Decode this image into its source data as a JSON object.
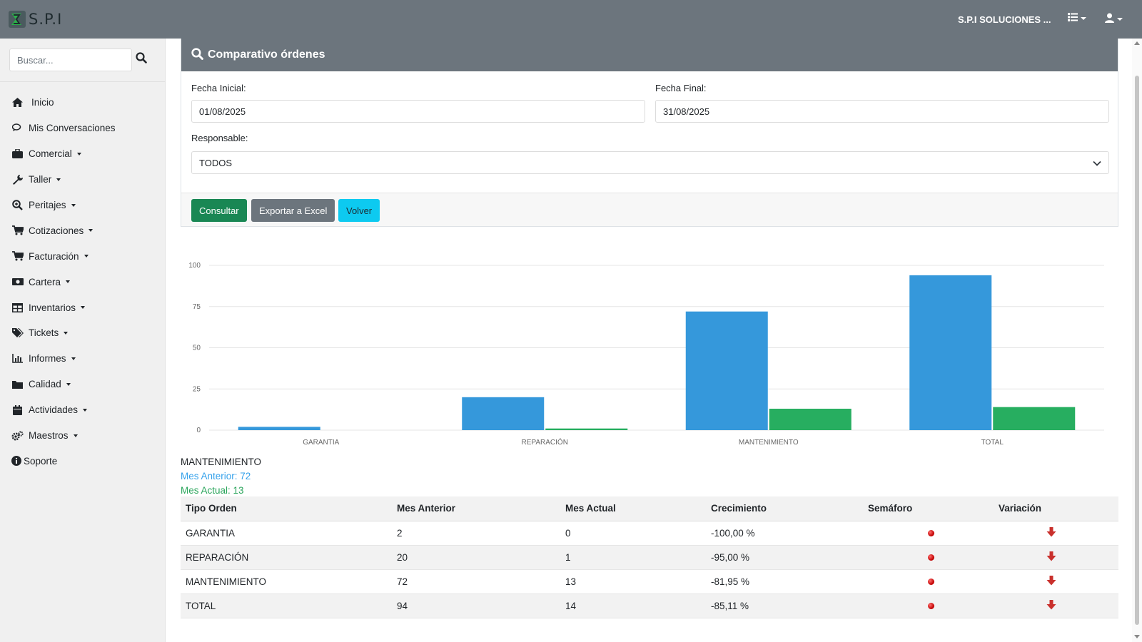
{
  "app": {
    "brand": "S.P.I",
    "company": "S.P.I SOLUCIONES ...",
    "icons": {
      "menu": "list-icon",
      "user": "user-icon"
    }
  },
  "sidebar": {
    "search_placeholder": "Buscar...",
    "items": [
      {
        "label": "Inicio",
        "icon": "home-icon",
        "dropdown": false
      },
      {
        "label": "Mis Conversaciones",
        "icon": "chat-icon",
        "dropdown": false
      },
      {
        "label": "Comercial",
        "icon": "briefcase-icon",
        "dropdown": true
      },
      {
        "label": "Taller",
        "icon": "wrench-icon",
        "dropdown": true
      },
      {
        "label": "Peritajes",
        "icon": "search-plus-icon",
        "dropdown": true
      },
      {
        "label": "Cotizaciones",
        "icon": "cart-icon",
        "dropdown": true
      },
      {
        "label": "Facturación",
        "icon": "cart-icon",
        "dropdown": true
      },
      {
        "label": "Cartera",
        "icon": "money-icon",
        "dropdown": true
      },
      {
        "label": "Inventarios",
        "icon": "table-icon",
        "dropdown": true
      },
      {
        "label": "Tickets",
        "icon": "tags-icon",
        "dropdown": true
      },
      {
        "label": "Informes",
        "icon": "chart-icon",
        "dropdown": true
      },
      {
        "label": "Calidad",
        "icon": "folder-icon",
        "dropdown": true
      },
      {
        "label": "Actividades",
        "icon": "calendar-icon",
        "dropdown": true
      },
      {
        "label": "Maestros",
        "icon": "cogs-icon",
        "dropdown": true
      },
      {
        "label": "Soporte",
        "icon": "info-icon",
        "dropdown": false
      }
    ]
  },
  "panel": {
    "title": "Comparativo órdenes",
    "fecha_inicial_label": "Fecha Inicial:",
    "fecha_inicial_value": "01/08/2025",
    "fecha_final_label": "Fecha Final:",
    "fecha_final_value": "31/08/2025",
    "responsable_label": "Responsable:",
    "responsable_value": "TODOS",
    "buttons": {
      "consultar": "Consultar",
      "exportar": "Exportar a Excel",
      "volver": "Volver"
    }
  },
  "chart_data": {
    "type": "bar",
    "categories": [
      "GARANTIA",
      "REPARACIÓN",
      "MANTENIMIENTO",
      "TOTAL"
    ],
    "series": [
      {
        "values": [
          2,
          20,
          72,
          94
        ],
        "color": "#3598db"
      },
      {
        "values": [
          0,
          1,
          13,
          14
        ],
        "color": "#27ae60"
      }
    ],
    "ylim": [
      0,
      100
    ],
    "yticks": [
      "0",
      "25",
      "50",
      "75",
      "100"
    ],
    "grid": true,
    "legend": "none"
  },
  "summary": {
    "category": "MANTENIMIENTO",
    "mes_anterior": "Mes Anterior: 72",
    "mes_actual": "Mes Actual: 13"
  },
  "table": {
    "headers": [
      "Tipo Orden",
      "Mes Anterior",
      "Mes Actual",
      "Crecimiento",
      "Semáforo",
      "Variación"
    ],
    "rows": [
      {
        "tipo": "GARANTIA",
        "anterior": "2",
        "actual": "0",
        "crecimiento": "-100,00 %",
        "semaforo": "red",
        "variacion": "down"
      },
      {
        "tipo": "REPARACIÓN",
        "anterior": "20",
        "actual": "1",
        "crecimiento": "-95,00 %",
        "semaforo": "red",
        "variacion": "down"
      },
      {
        "tipo": "MANTENIMIENTO",
        "anterior": "72",
        "actual": "13",
        "crecimiento": "-81,95 %",
        "semaforo": "red",
        "variacion": "down"
      },
      {
        "tipo": "TOTAL",
        "anterior": "94",
        "actual": "14",
        "crecimiento": "-85,11 %",
        "semaforo": "red",
        "variacion": "down"
      }
    ]
  }
}
